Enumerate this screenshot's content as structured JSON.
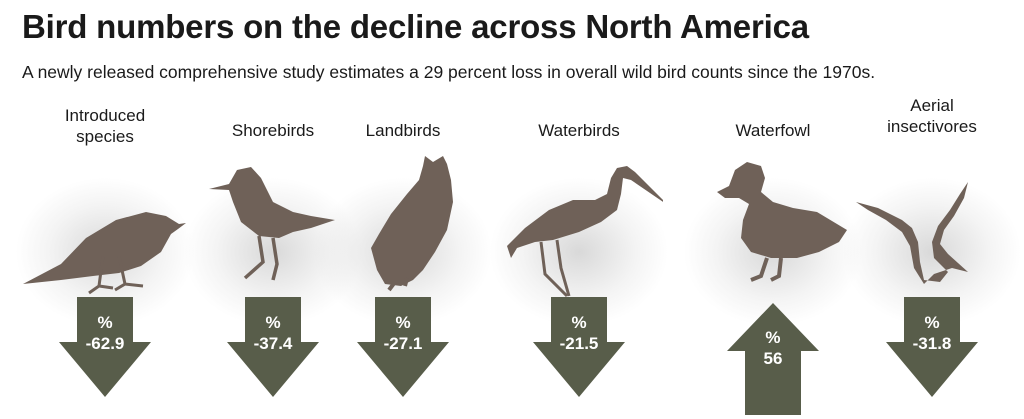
{
  "header": {
    "title": "Bird numbers on the decline across North America",
    "subtitle": "A newly released comprehensive study estimates a 29 percent loss in overall wild bird counts since the 1970s."
  },
  "colors": {
    "bird": "#6f6158",
    "arrow": "#585d4a",
    "arrow_text": "#ffffff"
  },
  "groups": [
    {
      "label": "Introduced species",
      "unit": "%",
      "value": "-62.9",
      "direction": "down",
      "icon": "starling-silhouette-icon"
    },
    {
      "label": "Shorebirds",
      "unit": "%",
      "value": "-37.4",
      "direction": "down",
      "icon": "sandpiper-silhouette-icon"
    },
    {
      "label": "Landbirds",
      "unit": "%",
      "value": "-27.1",
      "direction": "down",
      "icon": "owl-silhouette-icon"
    },
    {
      "label": "Waterbirds",
      "unit": "%",
      "value": "-21.5",
      "direction": "down",
      "icon": "heron-silhouette-icon"
    },
    {
      "label": "Waterfowl",
      "unit": "%",
      "value": "56",
      "direction": "up",
      "icon": "duck-silhouette-icon"
    },
    {
      "label": "Aerial insectivores",
      "unit": "%",
      "value": "-31.8",
      "direction": "down",
      "icon": "swallow-silhouette-icon"
    }
  ]
}
